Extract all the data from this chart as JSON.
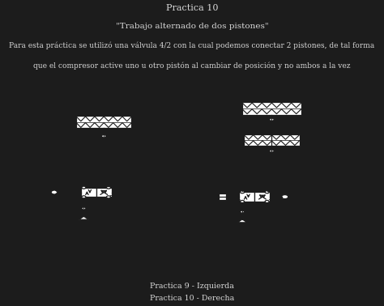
{
  "title1": "Practica 10",
  "title2": "\"Trabajo alternado de dos pistones\"",
  "title3": "Para esta práctica se utilizó una válvula 4/2 con la cual podemos conectar 2 pistones, de tal forma",
  "title4": "que el compresor active uno u otro pistón al cambiar de posición y no ambos a la vez",
  "footer1": "Practica 9 - Izquierda",
  "footer2": "Practica 10 - Derecha",
  "bg_dark": "#1c1c1c",
  "bg_panel": "#f2f2f2",
  "text_light": "#d8d8d8",
  "line_color": "#1c1c1c"
}
